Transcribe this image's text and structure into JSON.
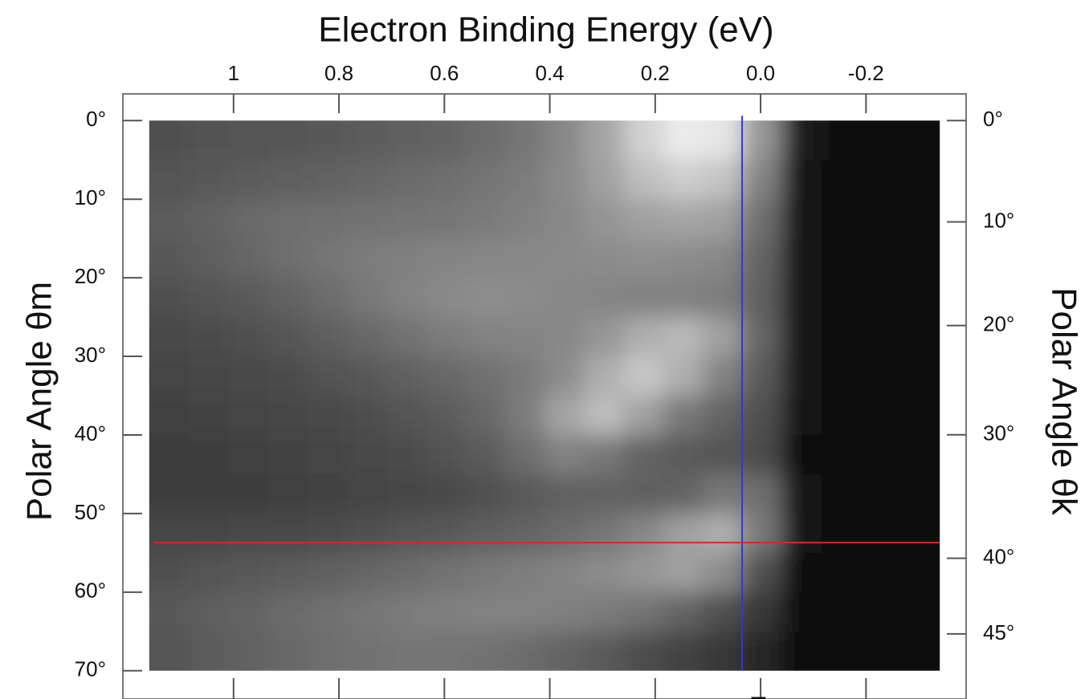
{
  "chart_data": {
    "type": "heatmap",
    "title": "Electron Binding Energy  (eV)",
    "ylabel": "Polar Angle  θm",
    "y2label": "Polar Angle  θk",
    "annotation": "E",
    "xlim": [
      1.21,
      -0.39
    ],
    "xticks": [
      1.0,
      0.8,
      0.6,
      0.4,
      0.2,
      {
        "value": 0.0,
        "label": "0.0"
      },
      -0.2
    ],
    "ylim": [
      -3.4,
      73.6
    ],
    "yticks": [
      {
        "value": 0,
        "label": "0°"
      },
      {
        "value": 10,
        "label": "10°"
      },
      {
        "value": 20,
        "label": "20°"
      },
      {
        "value": 30,
        "label": "30°"
      },
      {
        "value": 40,
        "label": "40°"
      },
      {
        "value": 50,
        "label": "50°"
      },
      {
        "value": 60,
        "label": "60°"
      },
      {
        "value": 70,
        "label": "70°"
      }
    ],
    "y2ticks": [
      {
        "value": 0,
        "label": "0°"
      },
      {
        "value": 10,
        "label": "10°"
      },
      {
        "value": 20,
        "label": "20°"
      },
      {
        "value": 30,
        "label": "30°"
      },
      {
        "value": 40,
        "label": "40°"
      },
      {
        "value": 45,
        "label": "45°"
      }
    ],
    "y2_refraction_index": 1.285,
    "x": [
      1.16,
      1.085,
      1.01,
      0.935,
      0.86,
      0.785,
      0.71,
      0.635,
      0.56,
      0.485,
      0.41,
      0.335,
      0.26,
      0.185,
      0.11,
      0.035,
      -0.04,
      -0.115,
      -0.19,
      -0.265,
      -0.34
    ],
    "y": [
      0,
      5,
      10,
      15,
      20,
      25,
      30,
      35,
      40,
      45,
      50,
      55,
      60,
      65,
      70
    ],
    "colormap": "gray",
    "z": [
      [
        80,
        82,
        84,
        86,
        88,
        92,
        96,
        100,
        108,
        118,
        135,
        165,
        210,
        235,
        230,
        150,
        30,
        12,
        10,
        10
      ],
      [
        85,
        88,
        92,
        95,
        98,
        102,
        106,
        110,
        116,
        124,
        138,
        160,
        190,
        205,
        195,
        130,
        25,
        12,
        10,
        10
      ],
      [
        92,
        98,
        105,
        110,
        112,
        114,
        116,
        118,
        122,
        128,
        136,
        148,
        160,
        165,
        160,
        110,
        22,
        10,
        10,
        10
      ],
      [
        88,
        95,
        102,
        110,
        118,
        124,
        128,
        132,
        134,
        136,
        138,
        140,
        142,
        140,
        135,
        100,
        20,
        10,
        10,
        10
      ],
      [
        80,
        85,
        90,
        98,
        108,
        120,
        130,
        138,
        142,
        140,
        136,
        132,
        130,
        128,
        125,
        95,
        20,
        10,
        10,
        10
      ],
      [
        72,
        76,
        80,
        86,
        94,
        104,
        114,
        124,
        130,
        132,
        135,
        150,
        175,
        185,
        160,
        100,
        22,
        10,
        10,
        10
      ],
      [
        68,
        70,
        72,
        76,
        82,
        88,
        96,
        104,
        112,
        122,
        140,
        175,
        200,
        175,
        130,
        90,
        20,
        10,
        10,
        10
      ],
      [
        64,
        66,
        68,
        70,
        74,
        78,
        84,
        92,
        104,
        125,
        165,
        190,
        160,
        120,
        100,
        80,
        18,
        10,
        10,
        10
      ],
      [
        62,
        62,
        64,
        66,
        68,
        72,
        76,
        82,
        92,
        110,
        130,
        120,
        100,
        90,
        85,
        75,
        16,
        10,
        10,
        10
      ],
      [
        62,
        62,
        62,
        64,
        66,
        68,
        70,
        74,
        80,
        88,
        96,
        98,
        96,
        100,
        120,
        110,
        18,
        10,
        10,
        10
      ],
      [
        70,
        70,
        72,
        74,
        76,
        80,
        84,
        88,
        94,
        100,
        108,
        118,
        135,
        160,
        175,
        120,
        20,
        10,
        10,
        10
      ],
      [
        80,
        84,
        88,
        92,
        96,
        102,
        108,
        114,
        120,
        126,
        132,
        140,
        150,
        160,
        140,
        80,
        15,
        10,
        10,
        10
      ],
      [
        88,
        94,
        100,
        106,
        112,
        118,
        124,
        128,
        130,
        130,
        128,
        124,
        115,
        100,
        80,
        55,
        12,
        10,
        10,
        10
      ],
      [
        85,
        92,
        98,
        104,
        110,
        114,
        116,
        116,
        114,
        108,
        100,
        90,
        78,
        66,
        55,
        40,
        10,
        10,
        10,
        10
      ]
    ],
    "vline": {
      "x": 0.035,
      "color": "#2a3cc8"
    },
    "hline": {
      "y": 53.7,
      "color": "#e02424"
    }
  }
}
